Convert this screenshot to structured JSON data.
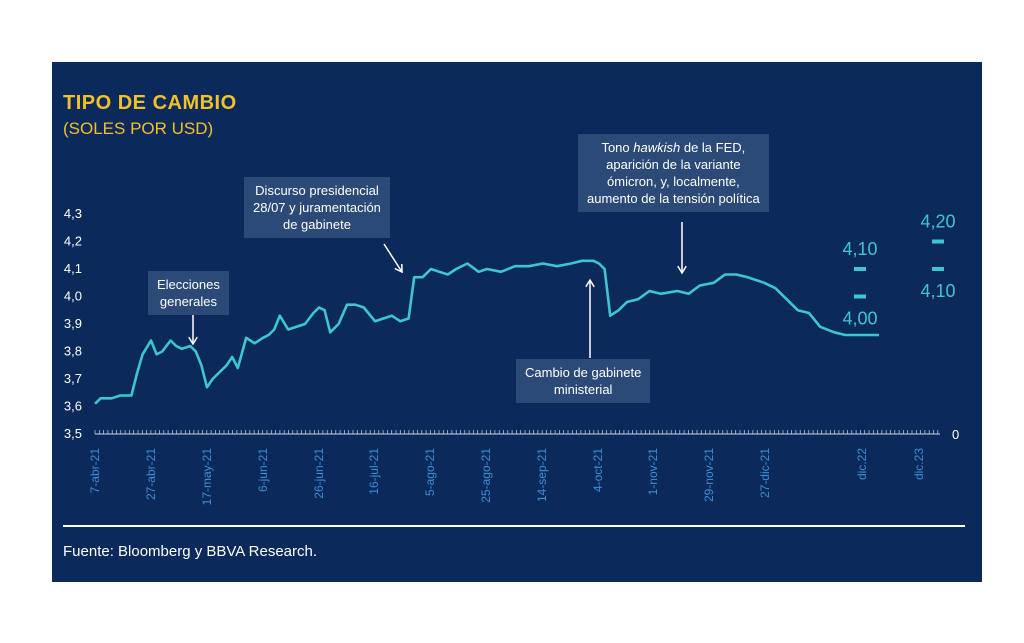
{
  "header": {
    "title": "TIPO DE CAMBIO",
    "subtitle": "(SOLES POR USD)"
  },
  "footer": {
    "source": "Fuente: Bloomberg y BBVA Research."
  },
  "annotations": {
    "elecciones": "Elecciones\ngenerales",
    "discurso": "Discurso presidencial\n28/07 y juramentación\nde gabinete",
    "cambio": "Cambio de gabinete\nministerial",
    "fed_line1_a": "Tono ",
    "fed_line1_b": "hawkish",
    "fed_line1_c": " de la FED,",
    "fed_rest": "aparición de la variante\nómicron, y, localmente,\naumento de la tensión política"
  },
  "colors": {
    "background": "#0b2a5b",
    "line": "#3ec6d0",
    "title": "#f2c029",
    "tick_label": "#3a8fd6",
    "annotation_box": "#2b4a78"
  },
  "chart_data": {
    "type": "line",
    "title": "TIPO DE CAMBIO",
    "subtitle": "(SOLES POR USD)",
    "ylim": [
      3.5,
      4.3
    ],
    "y_ticks": [
      "3,5",
      "3,6",
      "3,7",
      "3,8",
      "3,9",
      "4,0",
      "4,1",
      "4,2",
      "4,3"
    ],
    "right_axis_label": "0",
    "x_tick_labels": [
      "7-abr-21",
      "27-abr-21",
      "17-may-21",
      "6-jun-21",
      "26-jun-21",
      "16-jul-21",
      "5-ago-21",
      "25-ago-21",
      "14-sep-21",
      "4-oct-21",
      "1-nov-21",
      "29-nov-21",
      "27-dic-21",
      "dic.22",
      "dic.23"
    ],
    "series": [
      {
        "type": "line",
        "x": [
          "2021-04-07",
          "2021-04-09",
          "2021-04-13",
          "2021-04-16",
          "2021-04-20",
          "2021-04-22",
          "2021-04-24",
          "2021-04-27",
          "2021-04-29",
          "2021-05-01",
          "2021-05-04",
          "2021-05-06",
          "2021-05-08",
          "2021-05-11",
          "2021-05-13",
          "2021-05-15",
          "2021-05-17",
          "2021-05-19",
          "2021-05-21",
          "2021-05-24",
          "2021-05-26",
          "2021-05-28",
          "2021-05-31",
          "2021-06-03",
          "2021-06-06",
          "2021-06-08",
          "2021-06-10",
          "2021-06-12",
          "2021-06-15",
          "2021-06-18",
          "2021-06-21",
          "2021-06-24",
          "2021-06-26",
          "2021-06-28",
          "2021-06-30",
          "2021-07-03",
          "2021-07-06",
          "2021-07-09",
          "2021-07-12",
          "2021-07-16",
          "2021-07-19",
          "2021-07-22",
          "2021-07-25",
          "2021-07-28",
          "2021-07-30",
          "2021-08-02",
          "2021-08-05",
          "2021-08-08",
          "2021-08-11",
          "2021-08-14",
          "2021-08-18",
          "2021-08-22",
          "2021-08-25",
          "2021-08-30",
          "2021-09-04",
          "2021-09-09",
          "2021-09-14",
          "2021-09-19",
          "2021-09-24",
          "2021-09-28",
          "2021-10-02",
          "2021-10-04",
          "2021-10-06",
          "2021-10-08",
          "2021-10-11",
          "2021-10-14",
          "2021-10-18",
          "2021-10-22",
          "2021-10-26",
          "2021-11-01",
          "2021-11-05",
          "2021-11-09",
          "2021-11-14",
          "2021-11-18",
          "2021-11-22",
          "2021-11-26",
          "2021-11-29",
          "2021-12-02",
          "2021-12-06",
          "2021-12-10",
          "2021-12-14",
          "2021-12-18",
          "2021-12-22",
          "2021-12-27",
          "2021-12-31",
          "2022-01-04",
          "2022-01-08",
          "2022-01-12"
        ],
        "values": [
          3.61,
          3.63,
          3.63,
          3.64,
          3.64,
          3.72,
          3.79,
          3.84,
          3.79,
          3.8,
          3.84,
          3.82,
          3.81,
          3.82,
          3.8,
          3.75,
          3.67,
          3.7,
          3.72,
          3.75,
          3.78,
          3.74,
          3.85,
          3.83,
          3.85,
          3.86,
          3.88,
          3.93,
          3.88,
          3.89,
          3.9,
          3.94,
          3.96,
          3.95,
          3.87,
          3.9,
          3.97,
          3.97,
          3.96,
          3.91,
          3.92,
          3.93,
          3.91,
          3.92,
          4.07,
          4.07,
          4.1,
          4.09,
          4.08,
          4.1,
          4.12,
          4.09,
          4.1,
          4.09,
          4.11,
          4.11,
          4.12,
          4.11,
          4.12,
          4.13,
          4.13,
          4.12,
          4.1,
          3.93,
          3.95,
          3.98,
          3.99,
          4.02,
          4.01,
          4.02,
          4.01,
          4.04,
          4.05,
          4.08,
          4.08,
          4.07,
          4.06,
          4.05,
          4.03,
          3.99,
          3.95,
          3.94,
          3.89,
          3.87,
          3.86,
          3.86,
          3.86,
          3.86
        ]
      },
      {
        "name": "dic.22",
        "type": "markers",
        "values": [
          4.1,
          4.0
        ],
        "labels": [
          "4,10",
          "4,00"
        ]
      },
      {
        "name": "dic.23",
        "type": "markers",
        "values": [
          4.2,
          4.1
        ],
        "labels": [
          "4,20",
          "4,10"
        ]
      }
    ]
  }
}
